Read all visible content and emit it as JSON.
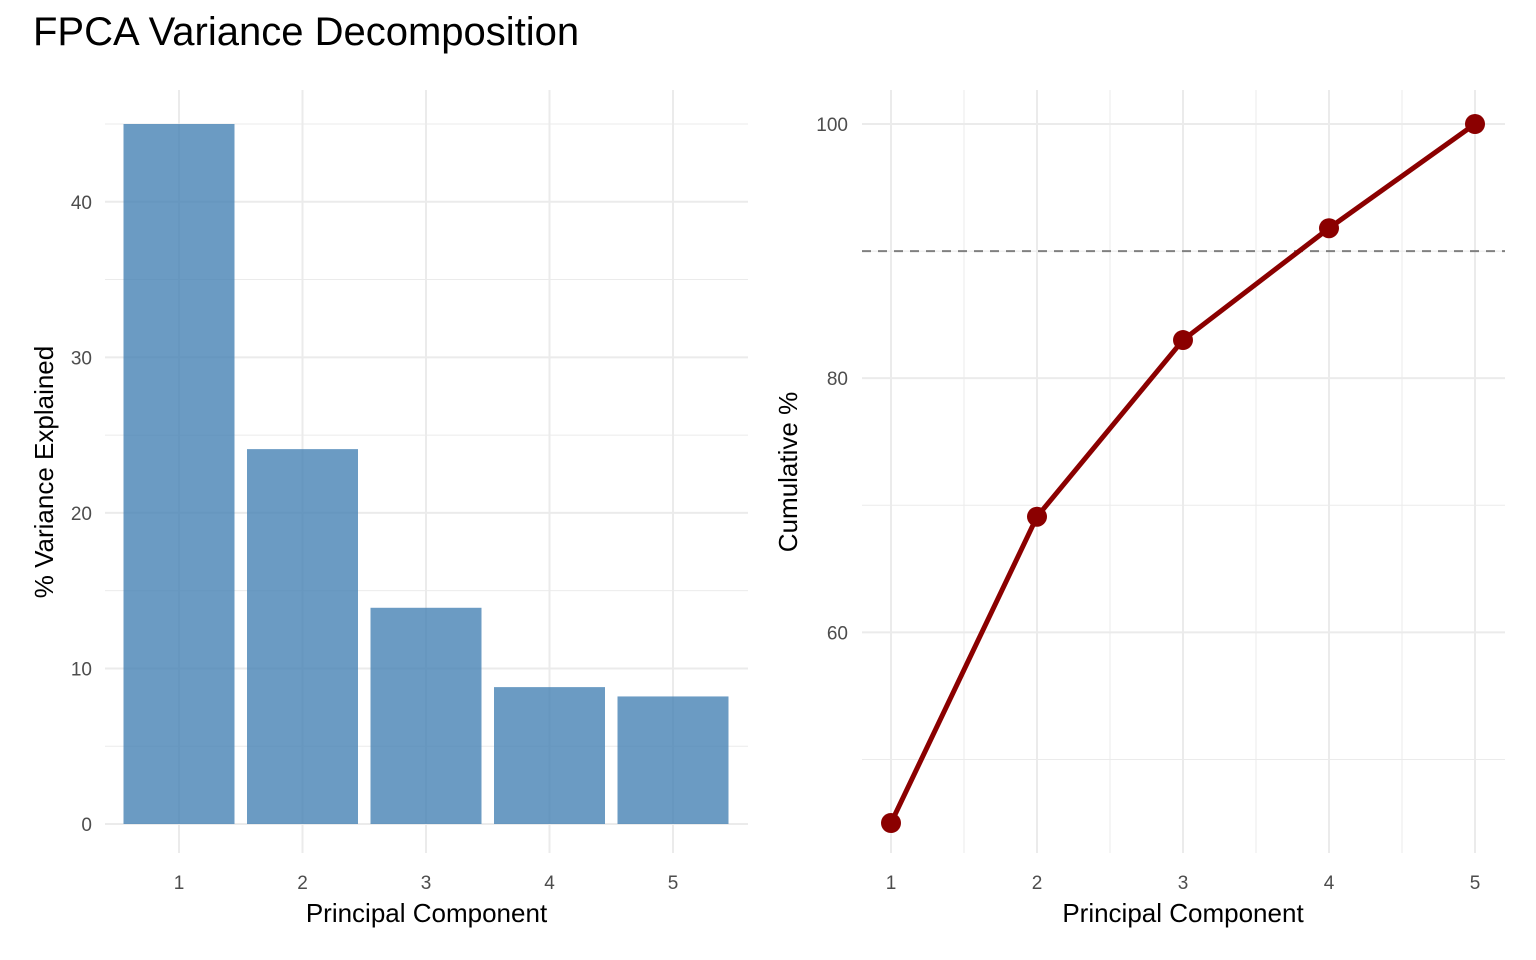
{
  "title": "FPCA Variance Decomposition",
  "colors": {
    "bar_fill": "#4682B4",
    "line": "#8B0000",
    "threshold_line": "#808080",
    "grid": "#ebebeb",
    "tick_text": "#4d4d4d"
  },
  "chart_data": [
    {
      "type": "bar",
      "categories": [
        "1",
        "2",
        "3",
        "4",
        "5"
      ],
      "values": [
        45.0,
        24.1,
        13.9,
        8.8,
        8.2
      ],
      "xlabel": "Principal Component",
      "ylabel": "% Variance Explained",
      "ylim": [
        0,
        45
      ],
      "yticks": [
        0,
        10,
        20,
        30,
        40
      ],
      "grid": true,
      "bar_opacity": 0.8
    },
    {
      "type": "line",
      "x": [
        1,
        2,
        3,
        4,
        5
      ],
      "values": [
        45.0,
        69.1,
        83.0,
        91.8,
        100.0
      ],
      "xlabel": "Principal Component",
      "ylabel": "Cumulative %",
      "ylim": [
        45,
        100
      ],
      "yticks": [
        60,
        80,
        100
      ],
      "xticks": [
        1,
        2,
        3,
        4,
        5
      ],
      "reference_line": {
        "orientation": "horizontal",
        "value": 90,
        "style": "dashed"
      },
      "grid": true
    }
  ]
}
